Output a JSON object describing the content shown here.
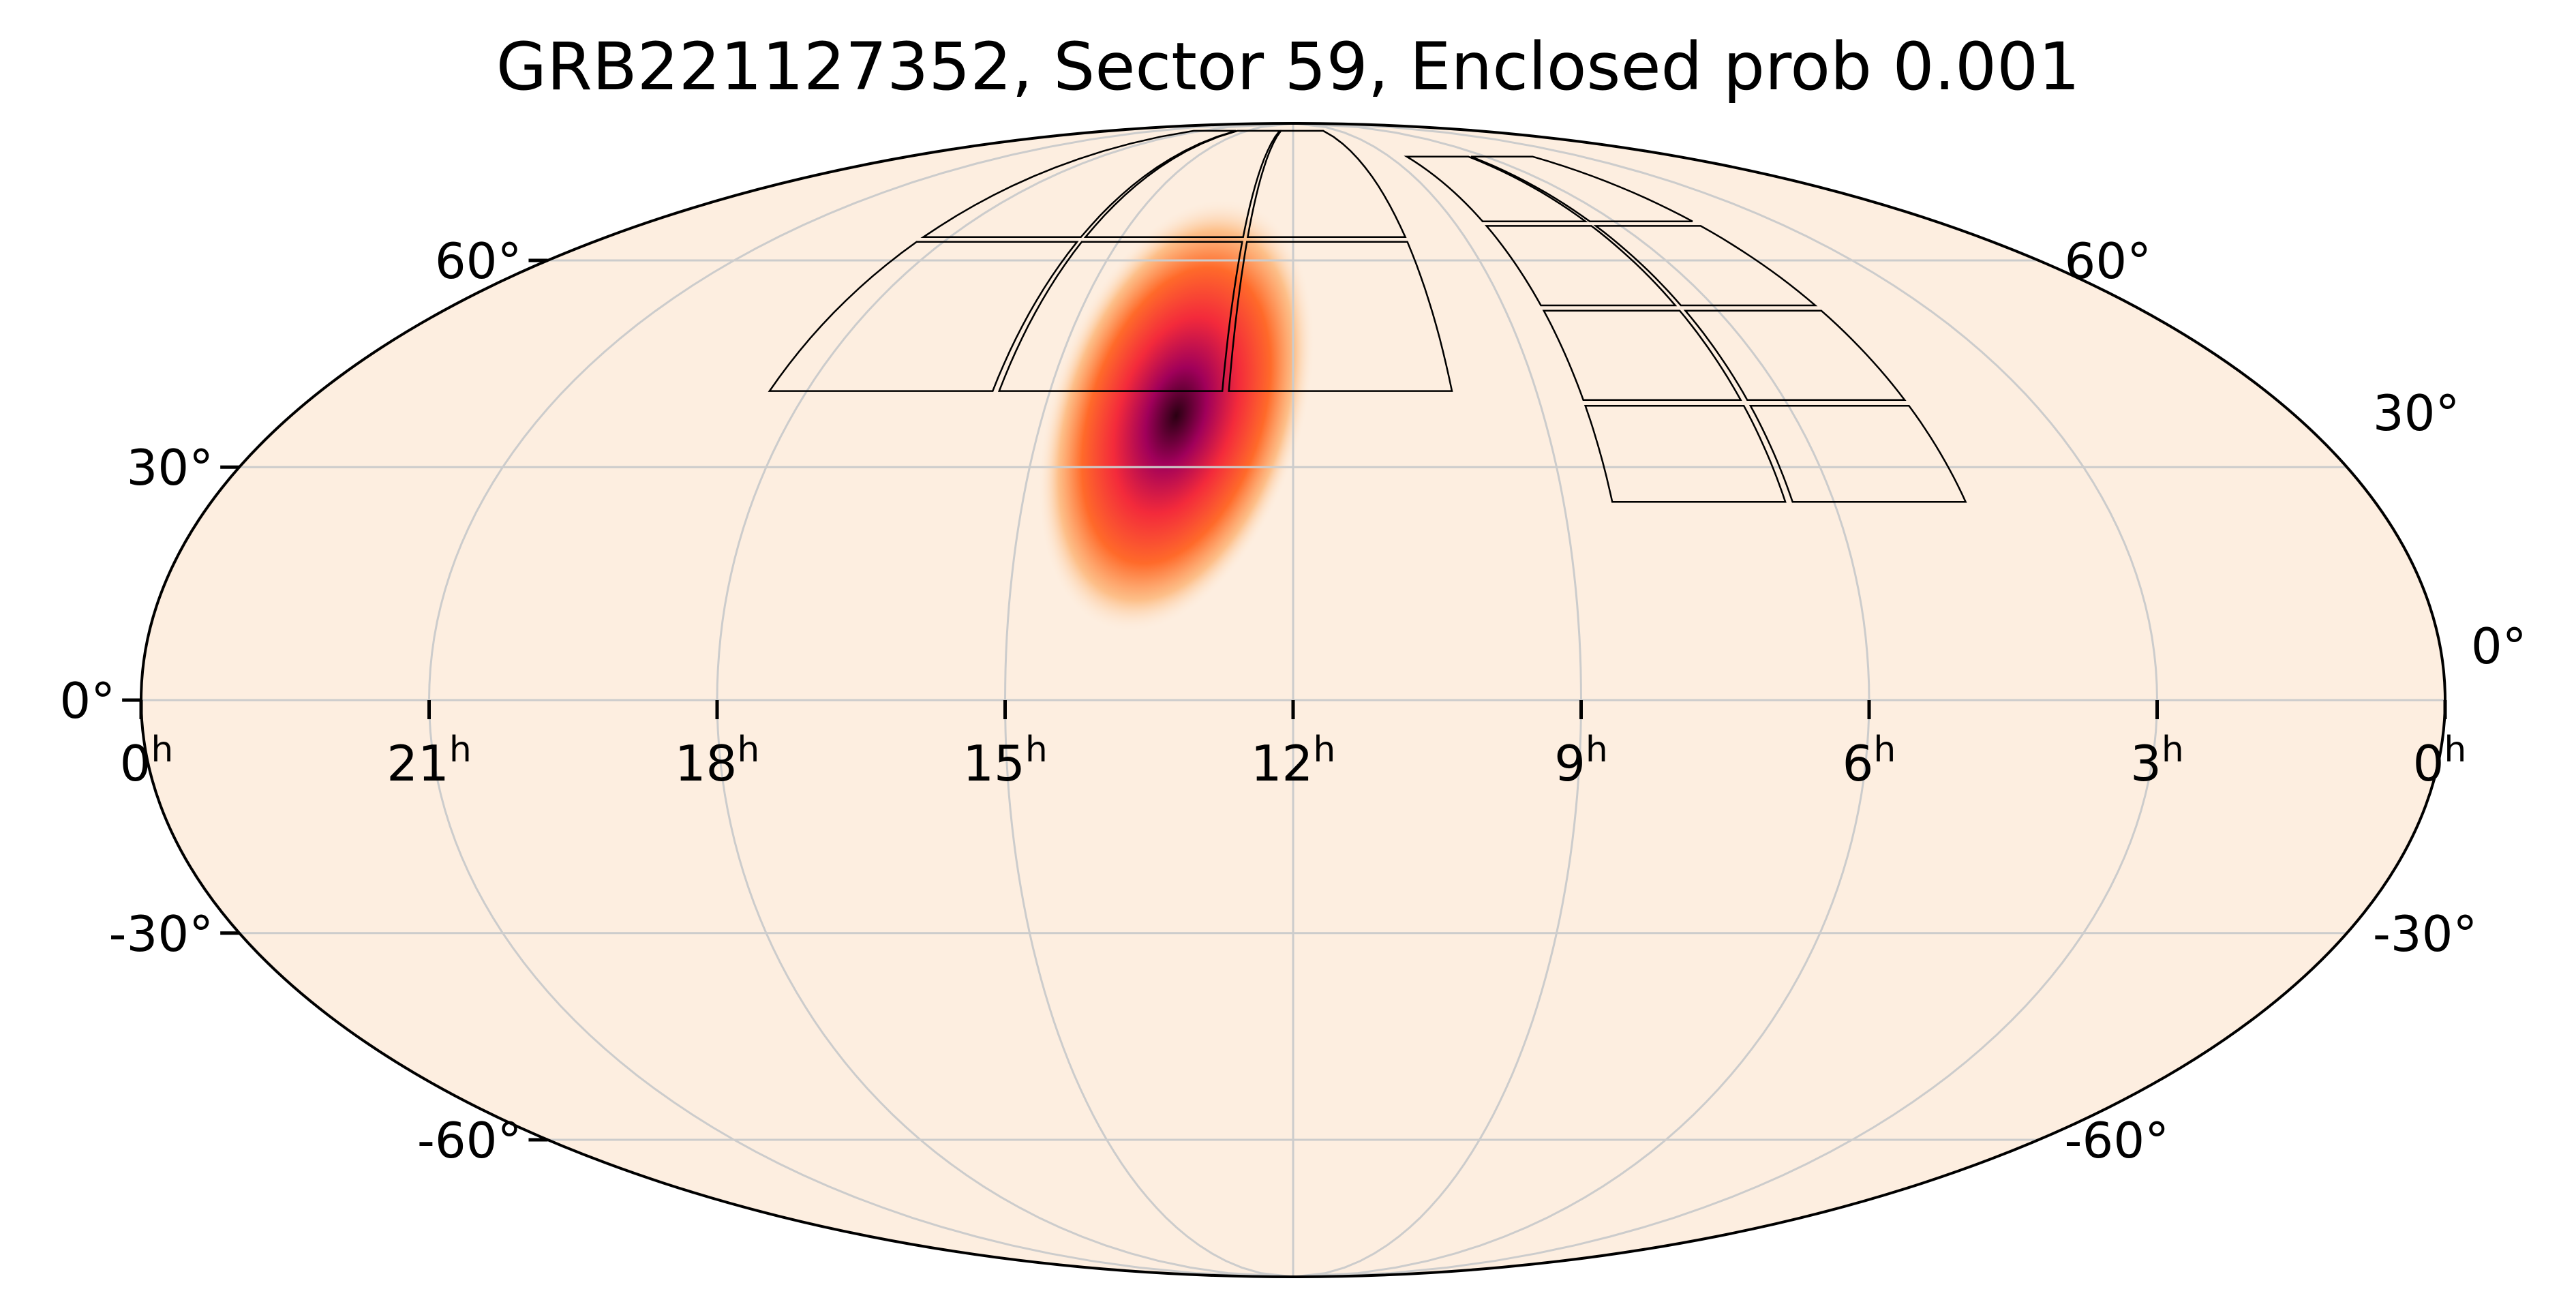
{
  "chart_data": {
    "type": "heatmap",
    "title": "GRB221127352, Sector 59, Enclosed prob 0.001",
    "projection": "mollweide",
    "ra_range_hours": [
      0,
      24
    ],
    "ra_direction": "decreasing left-to-right",
    "dec_range_deg": [
      -90,
      90
    ],
    "grid": true,
    "colormap": [
      "#fdeee0",
      "#fdb77a",
      "#ff6a2a",
      "#f32a3b",
      "#a0005a",
      "#2a0012"
    ],
    "background_color": "#fdeee0",
    "grid_color": "#cccccc",
    "ra_tick_labels": [
      {
        "ra": 24,
        "label": "0",
        "sup": "h"
      },
      {
        "ra": 21,
        "label": "21",
        "sup": "h"
      },
      {
        "ra": 18,
        "label": "18",
        "sup": "h"
      },
      {
        "ra": 15,
        "label": "15",
        "sup": "h"
      },
      {
        "ra": 12,
        "label": "12",
        "sup": "h"
      },
      {
        "ra": 9,
        "label": "9",
        "sup": "h"
      },
      {
        "ra": 6,
        "label": "6",
        "sup": "h"
      },
      {
        "ra": 3,
        "label": "3",
        "sup": "h"
      },
      {
        "ra": 0,
        "label": "0",
        "sup": "h"
      }
    ],
    "dec_tick_labels_left": [
      {
        "dec": 60,
        "label": "60°"
      },
      {
        "dec": 30,
        "label": "30°"
      },
      {
        "dec": 0,
        "label": "0°"
      },
      {
        "dec": -30,
        "label": "-30°"
      },
      {
        "dec": -60,
        "label": "-60°"
      }
    ],
    "dec_tick_labels_right": [
      {
        "dec": 60,
        "label": "60°"
      },
      {
        "dec": 30,
        "label": "30°"
      },
      {
        "dec": 0,
        "label": "0°"
      },
      {
        "dec": -30,
        "label": "-30°"
      },
      {
        "dec": -60,
        "label": "-60°"
      }
    ],
    "probability_peak": {
      "ra_hours": 13.4,
      "dec_deg": 37,
      "sigma_ra_hours": 0.9,
      "sigma_dec_deg": 11,
      "orientation": "elongated, tilted toward lower-left"
    },
    "sector_footprints": [
      {
        "name": "footprint-west-cap",
        "ra_hours": [
          10.0,
          18.5
        ],
        "dec_deg": [
          40,
          87
        ]
      },
      {
        "name": "footprint-east-column",
        "ra_hours": [
          4.5,
          8.5
        ],
        "dec_deg": [
          25,
          80
        ]
      }
    ]
  }
}
